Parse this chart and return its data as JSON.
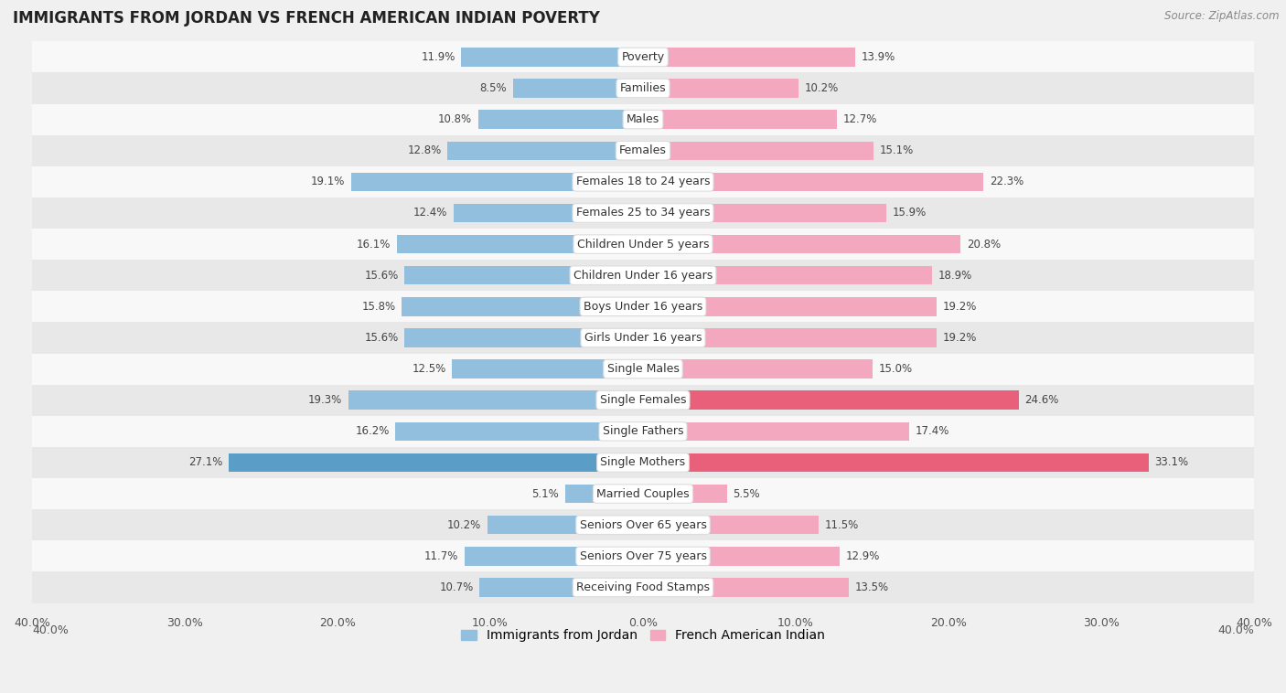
{
  "title": "IMMIGRANTS FROM JORDAN VS FRENCH AMERICAN INDIAN POVERTY",
  "source": "Source: ZipAtlas.com",
  "categories": [
    "Poverty",
    "Families",
    "Males",
    "Females",
    "Females 18 to 24 years",
    "Females 25 to 34 years",
    "Children Under 5 years",
    "Children Under 16 years",
    "Boys Under 16 years",
    "Girls Under 16 years",
    "Single Males",
    "Single Females",
    "Single Fathers",
    "Single Mothers",
    "Married Couples",
    "Seniors Over 65 years",
    "Seniors Over 75 years",
    "Receiving Food Stamps"
  ],
  "jordan_values": [
    11.9,
    8.5,
    10.8,
    12.8,
    19.1,
    12.4,
    16.1,
    15.6,
    15.8,
    15.6,
    12.5,
    19.3,
    16.2,
    27.1,
    5.1,
    10.2,
    11.7,
    10.7
  ],
  "french_values": [
    13.9,
    10.2,
    12.7,
    15.1,
    22.3,
    15.9,
    20.8,
    18.9,
    19.2,
    19.2,
    15.0,
    24.6,
    17.4,
    33.1,
    5.5,
    11.5,
    12.9,
    13.5
  ],
  "jordan_color": "#92bfdd",
  "french_color": "#f4a8bf",
  "jordan_highlight_color": "#5a9ec8",
  "french_highlight_color": "#e8607a",
  "highlight_jordan": [
    13
  ],
  "highlight_french": [
    11,
    13
  ],
  "background_color": "#f0f0f0",
  "row_bg_light": "#f8f8f8",
  "row_bg_dark": "#e8e8e8",
  "axis_limit": 40.0,
  "legend_label_jordan": "Immigrants from Jordan",
  "legend_label_french": "French American Indian",
  "bar_height": 0.6,
  "label_fontsize": 8.5,
  "cat_fontsize": 9.0
}
